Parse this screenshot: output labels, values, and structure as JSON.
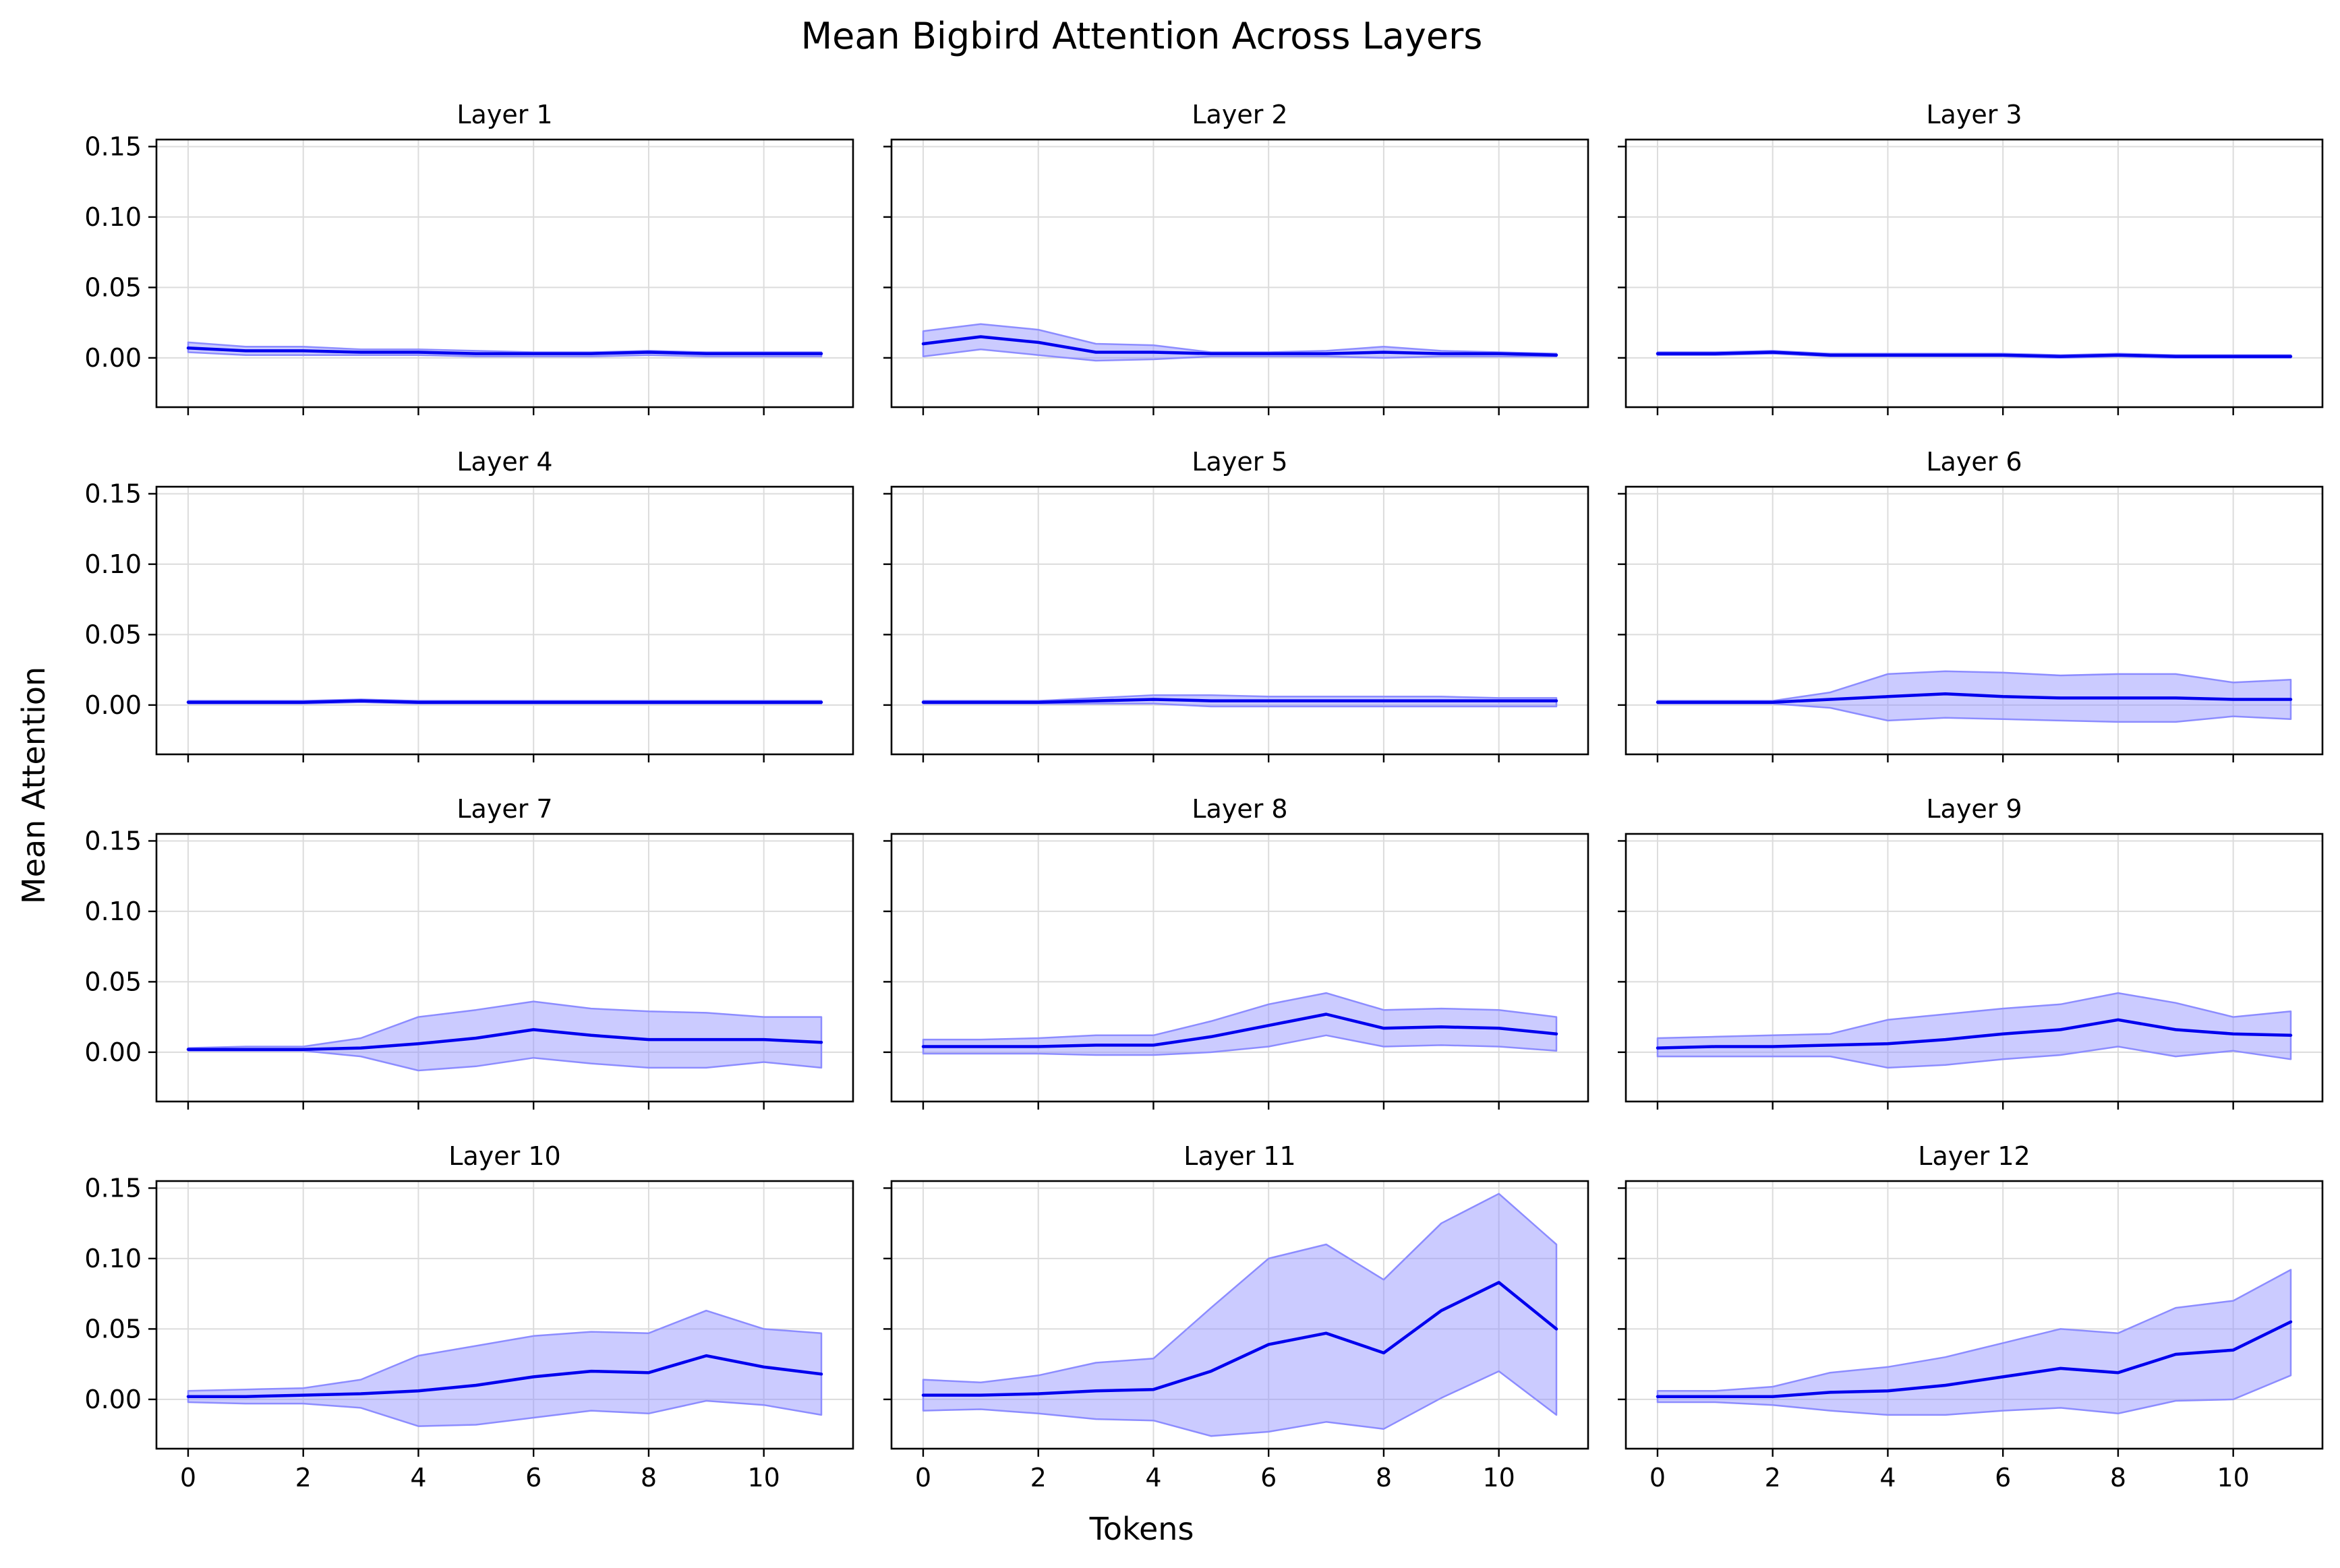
{
  "figure": {
    "title": "Mean Bigbird Attention Across Layers",
    "xlabel": "Tokens",
    "ylabel": "Mean Attention"
  },
  "colors": {
    "line": "#0000ee",
    "band": "#8c8cff",
    "grid": "#dcdcdc",
    "axes": "#000000"
  },
  "chart_data": {
    "type": "line",
    "layout": "4x3 grid of subplots, shared axes",
    "x": [
      0,
      1,
      2,
      3,
      4,
      5,
      6,
      7,
      8,
      9,
      10,
      11
    ],
    "xticks": [
      0,
      2,
      4,
      6,
      8,
      10
    ],
    "xlim": [
      -0.55,
      11.55
    ],
    "yticks": [
      0.0,
      0.05,
      0.1,
      0.15
    ],
    "ytick_labels": [
      "0.00",
      "0.05",
      "0.10",
      "0.15"
    ],
    "ylim": [
      -0.035,
      0.155
    ],
    "grid": true,
    "legend": "none",
    "subplots": [
      {
        "title": "Layer 1",
        "mean": [
          0.007,
          0.005,
          0.005,
          0.004,
          0.004,
          0.003,
          0.003,
          0.003,
          0.004,
          0.003,
          0.003,
          0.003
        ],
        "upper": [
          0.011,
          0.008,
          0.008,
          0.006,
          0.006,
          0.005,
          0.004,
          0.004,
          0.005,
          0.004,
          0.004,
          0.004
        ],
        "lower": [
          0.004,
          0.002,
          0.002,
          0.002,
          0.002,
          0.001,
          0.001,
          0.001,
          0.002,
          0.001,
          0.001,
          0.001
        ]
      },
      {
        "title": "Layer 2",
        "mean": [
          0.01,
          0.015,
          0.011,
          0.004,
          0.004,
          0.003,
          0.003,
          0.003,
          0.004,
          0.003,
          0.003,
          0.002
        ],
        "upper": [
          0.019,
          0.024,
          0.02,
          0.01,
          0.009,
          0.004,
          0.004,
          0.005,
          0.008,
          0.005,
          0.004,
          0.003
        ],
        "lower": [
          0.001,
          0.006,
          0.002,
          -0.002,
          -0.001,
          0.001,
          0.001,
          0.001,
          0.0,
          0.001,
          0.001,
          0.001
        ]
      },
      {
        "title": "Layer 3",
        "mean": [
          0.003,
          0.003,
          0.004,
          0.002,
          0.002,
          0.002,
          0.002,
          0.001,
          0.002,
          0.001,
          0.001,
          0.001
        ],
        "upper": [
          0.004,
          0.004,
          0.005,
          0.003,
          0.003,
          0.003,
          0.003,
          0.002,
          0.003,
          0.002,
          0.002,
          0.002
        ],
        "lower": [
          0.002,
          0.002,
          0.003,
          0.001,
          0.001,
          0.001,
          0.001,
          0.0,
          0.001,
          0.0,
          0.0,
          0.0
        ]
      },
      {
        "title": "Layer 4",
        "mean": [
          0.002,
          0.002,
          0.002,
          0.003,
          0.002,
          0.002,
          0.002,
          0.002,
          0.002,
          0.002,
          0.002,
          0.002
        ],
        "upper": [
          0.003,
          0.003,
          0.003,
          0.004,
          0.003,
          0.003,
          0.003,
          0.003,
          0.003,
          0.003,
          0.003,
          0.003
        ],
        "lower": [
          0.001,
          0.001,
          0.001,
          0.002,
          0.001,
          0.001,
          0.001,
          0.001,
          0.001,
          0.001,
          0.001,
          0.001
        ]
      },
      {
        "title": "Layer 5",
        "mean": [
          0.002,
          0.002,
          0.002,
          0.003,
          0.004,
          0.003,
          0.003,
          0.003,
          0.003,
          0.003,
          0.003,
          0.003
        ],
        "upper": [
          0.003,
          0.003,
          0.003,
          0.005,
          0.007,
          0.007,
          0.006,
          0.006,
          0.006,
          0.006,
          0.005,
          0.005
        ],
        "lower": [
          0.001,
          0.001,
          0.001,
          0.001,
          0.001,
          -0.001,
          -0.001,
          -0.001,
          -0.001,
          -0.001,
          -0.001,
          -0.001
        ]
      },
      {
        "title": "Layer 6",
        "mean": [
          0.002,
          0.002,
          0.002,
          0.004,
          0.006,
          0.008,
          0.006,
          0.005,
          0.005,
          0.005,
          0.004,
          0.004
        ],
        "upper": [
          0.003,
          0.003,
          0.003,
          0.009,
          0.022,
          0.024,
          0.023,
          0.021,
          0.022,
          0.022,
          0.016,
          0.018
        ],
        "lower": [
          0.001,
          0.001,
          0.001,
          -0.002,
          -0.011,
          -0.009,
          -0.01,
          -0.011,
          -0.012,
          -0.012,
          -0.008,
          -0.01
        ]
      },
      {
        "title": "Layer 7",
        "mean": [
          0.002,
          0.002,
          0.002,
          0.003,
          0.006,
          0.01,
          0.016,
          0.012,
          0.009,
          0.009,
          0.009,
          0.007
        ],
        "upper": [
          0.003,
          0.004,
          0.004,
          0.01,
          0.025,
          0.03,
          0.036,
          0.031,
          0.029,
          0.028,
          0.025,
          0.025
        ],
        "lower": [
          0.001,
          0.001,
          0.001,
          -0.003,
          -0.013,
          -0.01,
          -0.004,
          -0.008,
          -0.011,
          -0.011,
          -0.007,
          -0.011
        ]
      },
      {
        "title": "Layer 8",
        "mean": [
          0.004,
          0.004,
          0.004,
          0.005,
          0.005,
          0.011,
          0.019,
          0.027,
          0.017,
          0.018,
          0.017,
          0.013
        ],
        "upper": [
          0.009,
          0.009,
          0.01,
          0.012,
          0.012,
          0.022,
          0.034,
          0.042,
          0.03,
          0.031,
          0.03,
          0.025
        ],
        "lower": [
          -0.001,
          -0.001,
          -0.001,
          -0.002,
          -0.002,
          0.0,
          0.004,
          0.012,
          0.004,
          0.005,
          0.004,
          0.001
        ]
      },
      {
        "title": "Layer 9",
        "mean": [
          0.003,
          0.004,
          0.004,
          0.005,
          0.006,
          0.009,
          0.013,
          0.016,
          0.023,
          0.016,
          0.013,
          0.012
        ],
        "upper": [
          0.01,
          0.011,
          0.012,
          0.013,
          0.023,
          0.027,
          0.031,
          0.034,
          0.042,
          0.035,
          0.025,
          0.029
        ],
        "lower": [
          -0.003,
          -0.003,
          -0.003,
          -0.003,
          -0.011,
          -0.009,
          -0.005,
          -0.002,
          0.004,
          -0.003,
          0.001,
          -0.005
        ]
      },
      {
        "title": "Layer 10",
        "mean": [
          0.002,
          0.002,
          0.003,
          0.004,
          0.006,
          0.01,
          0.016,
          0.02,
          0.019,
          0.031,
          0.023,
          0.018
        ],
        "upper": [
          0.006,
          0.007,
          0.008,
          0.014,
          0.031,
          0.038,
          0.045,
          0.048,
          0.047,
          0.063,
          0.05,
          0.047
        ],
        "lower": [
          -0.002,
          -0.003,
          -0.003,
          -0.006,
          -0.019,
          -0.018,
          -0.013,
          -0.008,
          -0.01,
          -0.001,
          -0.004,
          -0.011
        ]
      },
      {
        "title": "Layer 11",
        "mean": [
          0.003,
          0.003,
          0.004,
          0.006,
          0.007,
          0.02,
          0.039,
          0.047,
          0.033,
          0.063,
          0.083,
          0.05
        ],
        "upper": [
          0.014,
          0.012,
          0.017,
          0.026,
          0.029,
          0.065,
          0.1,
          0.11,
          0.085,
          0.125,
          0.146,
          0.11
        ],
        "lower": [
          -0.008,
          -0.007,
          -0.01,
          -0.014,
          -0.015,
          -0.026,
          -0.023,
          -0.016,
          -0.021,
          0.001,
          0.02,
          -0.011
        ]
      },
      {
        "title": "Layer 12",
        "mean": [
          0.002,
          0.002,
          0.002,
          0.005,
          0.006,
          0.01,
          0.016,
          0.022,
          0.019,
          0.032,
          0.035,
          0.055
        ],
        "upper": [
          0.006,
          0.006,
          0.009,
          0.019,
          0.023,
          0.03,
          0.04,
          0.05,
          0.047,
          0.065,
          0.07,
          0.092
        ],
        "lower": [
          -0.002,
          -0.002,
          -0.004,
          -0.008,
          -0.011,
          -0.011,
          -0.008,
          -0.006,
          -0.01,
          -0.001,
          0.0,
          0.017
        ]
      }
    ]
  }
}
